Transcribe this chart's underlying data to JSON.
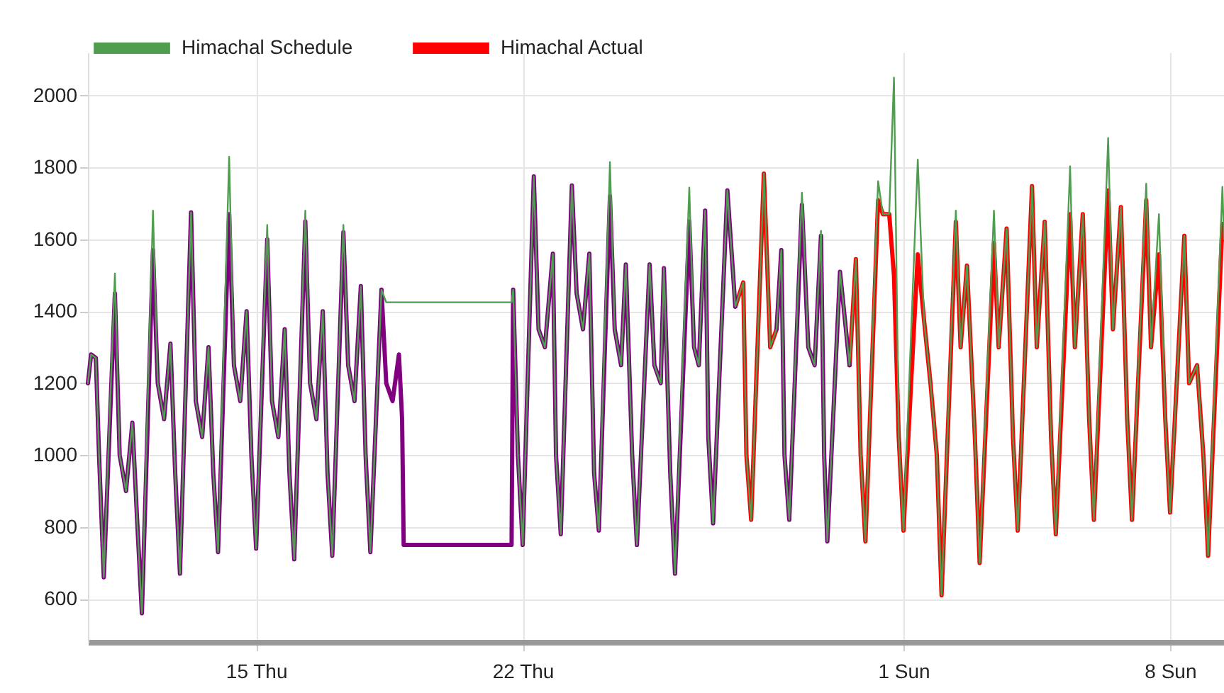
{
  "chart_data": {
    "type": "line",
    "xlim": [
      "--03-10T14:00",
      "--04-09T10:00"
    ],
    "xticks": [
      {
        "value": "--03-15",
        "label": "15 Thu"
      },
      {
        "value": "--03-22",
        "label": "22 Thu"
      },
      {
        "value": "--04-01",
        "label": "1 Sun"
      },
      {
        "value": "--04-08",
        "label": "8 Sun"
      }
    ],
    "ylim": [
      480,
      2120
    ],
    "yticks": [
      600,
      800,
      1000,
      1200,
      1400,
      1600,
      1800,
      2000
    ],
    "grid": true,
    "legend": "top left",
    "marker": "none",
    "line_style": "solid",
    "series": [
      {
        "name": "Himachal Schedule",
        "color": "#4f9d4f",
        "x": [
          "--03-10T14:00",
          "--03-10T16:00",
          "--03-10T19:00",
          "--03-10T21:00",
          "--03-11T00:00",
          "--03-11T07:00",
          "--03-11T10:00",
          "--03-11T14:00",
          "--03-11T18:00",
          "--03-11T21:00",
          "--03-12T00:00",
          "--03-12T07:00",
          "--03-12T10:00",
          "--03-12T14:00",
          "--03-12T18:00",
          "--03-12T21:00",
          "--03-13T00:00",
          "--03-13T07:00",
          "--03-13T10:00",
          "--03-13T14:00",
          "--03-13T18:00",
          "--03-13T21:00",
          "--03-14T00:00",
          "--03-14T07:00",
          "--03-14T10:00",
          "--03-14T14:00",
          "--03-14T18:00",
          "--03-14T21:00",
          "--03-15T00:00",
          "--03-15T07:00",
          "--03-15T10:00",
          "--03-15T14:00",
          "--03-15T18:00",
          "--03-15T21:00",
          "--03-16T00:00",
          "--03-16T07:00",
          "--03-16T10:00",
          "--03-16T14:00",
          "--03-16T18:00",
          "--03-16T21:00",
          "--03-17T00:00",
          "--03-17T07:00",
          "--03-17T10:00",
          "--03-17T14:00",
          "--03-17T18:00",
          "--03-17T21:00",
          "--03-18T00:00",
          "--03-18T07:00",
          "--03-18T10:00",
          "--03-21T17:00",
          "--03-21T18:00",
          "--03-21T21:00",
          "--03-22T00:00",
          "--03-22T07:00",
          "--03-22T10:00",
          "--03-22T14:00",
          "--03-22T19:00",
          "--03-22T21:00",
          "--03-23T00:00",
          "--03-23T07:00",
          "--03-23T10:00",
          "--03-23T14:00",
          "--03-23T18:00",
          "--03-23T21:00",
          "--03-24T00:00",
          "--03-24T07:00",
          "--03-24T10:00",
          "--03-24T14:00",
          "--03-24T17:00",
          "--03-24T21:00",
          "--03-25T00:00",
          "--03-25T08:00",
          "--03-25T11:00",
          "--03-25T15:00",
          "--03-25T17:00",
          "--03-25T21:00",
          "--03-26T00:00",
          "--03-26T09:00",
          "--03-26T12:00",
          "--03-26T15:00",
          "--03-26T19:00",
          "--03-26T21:00",
          "--03-27T00:00",
          "--03-27T09:00",
          "--03-27T14:00",
          "--03-27T19:00",
          "--03-27T21:00",
          "--03-28T00:00",
          "--03-28T08:00",
          "--03-28T12:00",
          "--03-28T16:00",
          "--03-28T19:00",
          "--03-28T21:00",
          "--03-29T00:00",
          "--03-29T08:00",
          "--03-29T12:00",
          "--03-29T16:00",
          "--03-29T20:00",
          "--03-29T22:00",
          "--03-30T00:00",
          "--03-30T08:00",
          "--03-30T14:00",
          "--03-30T18:00",
          "--03-30T21:00",
          "--03-31T00:00",
          "--03-31T08:00",
          "--03-31T11:00",
          "--03-31T15:00",
          "--03-31T18:00",
          "--03-31T21:00",
          "--04-01T00:00",
          "--04-01T09:00",
          "--04-01T13:00",
          "--04-01T17:00",
          "--04-01T21:00",
          "--04-02T00:00",
          "--04-02T09:00",
          "--04-02T12:00",
          "--04-02T16:00",
          "--04-02T21:00",
          "--04-03T00:00",
          "--04-03T09:00",
          "--04-03T12:00",
          "--04-03T17:00",
          "--04-03T21:00",
          "--04-04T00:00",
          "--04-04T09:00",
          "--04-04T12:00",
          "--04-04T17:00",
          "--04-04T21:00",
          "--04-05T00:00",
          "--04-05T09:00",
          "--04-05T12:00",
          "--04-05T17:00",
          "--04-05T21:00",
          "--04-06T00:00",
          "--04-06T09:00",
          "--04-06T12:00",
          "--04-06T17:00",
          "--04-06T21:00",
          "--04-07T00:00",
          "--04-07T09:00",
          "--04-07T12:00",
          "--04-07T17:00",
          "--04-07T21:00",
          "--04-08T00:00",
          "--04-08T09:00",
          "--04-08T12:00",
          "--04-08T17:00",
          "--04-08T21:00",
          "--04-09T00:00",
          "--04-09T09:00",
          "--04-09T10:00"
        ],
        "values": [
          1200,
          1280,
          1270,
          1000,
          660,
          1505,
          1000,
          900,
          1090,
          820,
          560,
          1680,
          1200,
          1100,
          1310,
          950,
          670,
          1675,
          1150,
          1050,
          1300,
          950,
          730,
          1830,
          1250,
          1150,
          1400,
          1000,
          740,
          1640,
          1150,
          1050,
          1350,
          950,
          710,
          1680,
          1200,
          1100,
          1400,
          950,
          720,
          1640,
          1250,
          1150,
          1470,
          1000,
          730,
          1460,
          1425,
          1425,
          1460,
          1000,
          750,
          1775,
          1350,
          1300,
          1560,
          1000,
          780,
          1750,
          1450,
          1350,
          1560,
          950,
          790,
          1815,
          1350,
          1250,
          1530,
          1000,
          750,
          1530,
          1250,
          1200,
          1520,
          950,
          670,
          1744,
          1300,
          1250,
          1680,
          1050,
          810,
          1736,
          1413,
          1480,
          1000,
          820,
          1783,
          1300,
          1350,
          1570,
          1000,
          820,
          1730,
          1300,
          1250,
          1624,
          1000,
          760,
          1510,
          1250,
          1545,
          1000,
          760,
          1762,
          1670,
          1670,
          2050,
          1050,
          790,
          1822,
          1373,
          1200,
          1000,
          610,
          1680,
          1300,
          1527,
          1050,
          700,
          1680,
          1300,
          1630,
          1050,
          790,
          1748,
          1300,
          1649,
          1050,
          780,
          1803,
          1300,
          1670,
          1100,
          820,
          1882,
          1350,
          1690,
          1100,
          820,
          1755,
          1300,
          1670,
          1100,
          840,
          1610,
          1200,
          1250,
          1000,
          720,
          1746,
          1600
        ]
      },
      {
        "name": "Himachal Actual",
        "color": "#ff0000",
        "x": [
          "--03-27T14:00",
          "--03-27T19:00",
          "--03-27T21:00",
          "--03-28T00:00",
          "--03-28T08:00",
          "--03-28T12:00",
          "--03-28T16:00",
          "--03-29T06:00",
          "--03-30T14:00",
          "--03-30T18:00",
          "--03-30T21:00",
          "--03-31T00:00",
          "--03-31T08:00",
          "--03-31T11:00",
          "--03-31T15:00",
          "--03-31T18:00",
          "--03-31T21:00",
          "--04-01T00:00",
          "--04-01T09:00",
          "--04-01T13:00",
          "--04-01T17:00",
          "--04-01T21:00",
          "--04-02T00:00",
          "--04-02T09:00",
          "--04-02T12:00",
          "--04-02T16:00",
          "--04-02T21:00",
          "--04-03T00:00",
          "--04-03T09:00",
          "--04-03T12:00",
          "--04-03T17:00",
          "--04-03T21:00",
          "--04-04T00:00",
          "--04-04T09:00",
          "--04-04T12:00",
          "--04-04T17:00",
          "--04-04T21:00",
          "--04-05T00:00",
          "--04-05T09:00",
          "--04-05T12:00",
          "--04-05T17:00",
          "--04-05T21:00",
          "--04-06T00:00",
          "--04-06T09:00",
          "--04-06T12:00",
          "--04-06T17:00",
          "--04-06T21:00",
          "--04-07T00:00",
          "--04-07T09:00",
          "--04-07T12:00",
          "--04-07T17:00",
          "--04-07T21:00",
          "--04-08T00:00",
          "--04-08T09:00",
          "--04-08T12:00",
          "--04-08T17:00",
          "--04-08T21:00",
          "--04-09T00:00",
          "--04-09T09:00",
          "--04-09T10:00"
        ],
        "values": [
          1413,
          1480,
          1000,
          820,
          1783,
          1300,
          1350,
          null,
          1250,
          1545,
          1000,
          760,
          1709,
          1670,
          1670,
          1500,
          1050,
          790,
          1558,
          1373,
          1200,
          1000,
          610,
          1649,
          1300,
          1527,
          1050,
          700,
          1590,
          1300,
          1630,
          1050,
          790,
          1748,
          1300,
          1649,
          1050,
          780,
          1670,
          1300,
          1670,
          1100,
          820,
          1736,
          1350,
          1690,
          1100,
          820,
          1709,
          1300,
          1558,
          1100,
          840,
          1610,
          1200,
          1250,
          1000,
          720,
          1643,
          1600
        ]
      },
      {
        "color": "#800080",
        "x": [
          "--03-10T14:00",
          "--03-10T16:00",
          "--03-10T19:00",
          "--03-10T21:00",
          "--03-11T00:00",
          "--03-11T07:00",
          "--03-11T10:00",
          "--03-11T14:00",
          "--03-11T18:00",
          "--03-11T21:00",
          "--03-12T00:00",
          "--03-12T07:00",
          "--03-12T10:00",
          "--03-12T14:00",
          "--03-12T18:00",
          "--03-12T21:00",
          "--03-13T00:00",
          "--03-13T07:00",
          "--03-13T10:00",
          "--03-13T14:00",
          "--03-13T18:00",
          "--03-13T21:00",
          "--03-14T00:00",
          "--03-14T07:00",
          "--03-14T10:00",
          "--03-14T14:00",
          "--03-14T18:00",
          "--03-14T21:00",
          "--03-15T00:00",
          "--03-15T07:00",
          "--03-15T10:00",
          "--03-15T14:00",
          "--03-15T18:00",
          "--03-15T21:00",
          "--03-16T00:00",
          "--03-16T07:00",
          "--03-16T10:00",
          "--03-16T14:00",
          "--03-16T18:00",
          "--03-16T21:00",
          "--03-17T00:00",
          "--03-17T07:00",
          "--03-17T10:00",
          "--03-17T14:00",
          "--03-17T18:00",
          "--03-17T21:00",
          "--03-18T00:00",
          "--03-18T07:00",
          "--03-18T10:00",
          "--03-18T14:00",
          "--03-18T18:00",
          "--03-18T20:00",
          "--03-18T21:00",
          "--03-21T17:00",
          "--03-21T18:00",
          "--03-21T21:00",
          "--03-22T00:00",
          "--03-22T07:00",
          "--03-22T10:00",
          "--03-22T14:00",
          "--03-22T19:00",
          "--03-22T21:00",
          "--03-23T00:00",
          "--03-23T07:00",
          "--03-23T10:00",
          "--03-23T14:00",
          "--03-23T18:00",
          "--03-23T21:00",
          "--03-24T00:00",
          "--03-24T07:00",
          "--03-24T10:00",
          "--03-24T14:00",
          "--03-24T17:00",
          "--03-24T21:00",
          "--03-25T00:00",
          "--03-25T08:00",
          "--03-25T11:00",
          "--03-25T15:00",
          "--03-25T17:00",
          "--03-25T21:00",
          "--03-26T00:00",
          "--03-26T09:00",
          "--03-26T12:00",
          "--03-26T15:00",
          "--03-26T19:00",
          "--03-26T21:00",
          "--03-27T00:00",
          "--03-27T09:00",
          "--03-27T14:00",
          "--03-27T22:00",
          "--03-28T16:00",
          "--03-28T19:00",
          "--03-28T21:00",
          "--03-29T00:00",
          "--03-29T08:00",
          "--03-29T12:00",
          "--03-29T16:00",
          "--03-29T20:00",
          "--03-29T22:00",
          "--03-30T00:00",
          "--03-30T08:00",
          "--03-30T14:00"
        ],
        "values": [
          1200,
          1280,
          1270,
          1000,
          660,
          1450,
          1000,
          900,
          1090,
          820,
          560,
          1570,
          1200,
          1100,
          1310,
          950,
          670,
          1675,
          1150,
          1050,
          1300,
          950,
          730,
          1670,
          1250,
          1150,
          1400,
          1000,
          740,
          1600,
          1150,
          1050,
          1350,
          950,
          710,
          1650,
          1200,
          1100,
          1400,
          950,
          720,
          1620,
          1250,
          1150,
          1470,
          1000,
          730,
          1460,
          1200,
          1150,
          1280,
          1100,
          750,
          750,
          1460,
          1000,
          750,
          1775,
          1350,
          1300,
          1560,
          1000,
          780,
          1750,
          1450,
          1350,
          1560,
          950,
          790,
          1720,
          1350,
          1250,
          1530,
          1000,
          750,
          1530,
          1250,
          1200,
          1520,
          950,
          670,
          1650,
          1300,
          1250,
          1680,
          1050,
          810,
          1736,
          1413,
          null,
          1350,
          1570,
          1000,
          820,
          1696,
          1300,
          1250,
          1610,
          1000,
          760,
          1510,
          1250
        ]
      }
    ]
  }
}
